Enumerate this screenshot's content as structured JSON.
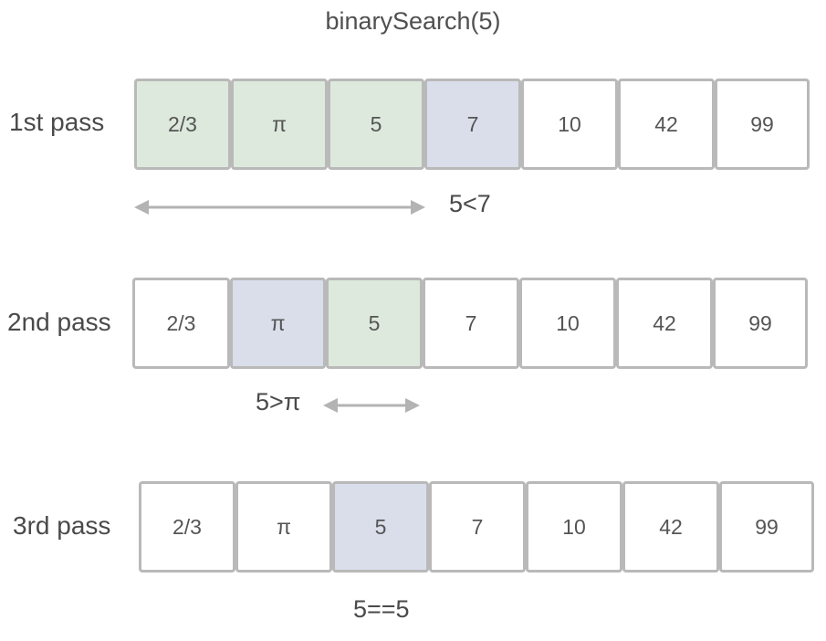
{
  "title": "binarySearch(5)",
  "colors": {
    "window": "#dde9dc",
    "middle": "#d9deea",
    "plain": "#ffffff",
    "border": "#b9b9b9",
    "arrow": "#b3b3b3"
  },
  "values": [
    "2/3",
    "π",
    "5",
    "7",
    "10",
    "42",
    "99"
  ],
  "passes": [
    {
      "label": "1st pass",
      "cells": [
        {
          "value": "2/3",
          "state": "window"
        },
        {
          "value": "π",
          "state": "window"
        },
        {
          "value": "5",
          "state": "window"
        },
        {
          "value": "7",
          "state": "middle"
        },
        {
          "value": "10",
          "state": "plain"
        },
        {
          "value": "42",
          "state": "plain"
        },
        {
          "value": "99",
          "state": "plain"
        }
      ],
      "comparison": "5<7"
    },
    {
      "label": "2nd pass",
      "cells": [
        {
          "value": "2/3",
          "state": "plain"
        },
        {
          "value": "π",
          "state": "middle"
        },
        {
          "value": "5",
          "state": "window"
        },
        {
          "value": "7",
          "state": "plain"
        },
        {
          "value": "10",
          "state": "plain"
        },
        {
          "value": "42",
          "state": "plain"
        },
        {
          "value": "99",
          "state": "plain"
        }
      ],
      "comparison": "5>π"
    },
    {
      "label": "3rd pass",
      "cells": [
        {
          "value": "2/3",
          "state": "plain"
        },
        {
          "value": "π",
          "state": "plain"
        },
        {
          "value": "5",
          "state": "middle"
        },
        {
          "value": "7",
          "state": "plain"
        },
        {
          "value": "10",
          "state": "plain"
        },
        {
          "value": "42",
          "state": "plain"
        },
        {
          "value": "99",
          "state": "plain"
        }
      ],
      "comparison": "5==5"
    }
  ]
}
